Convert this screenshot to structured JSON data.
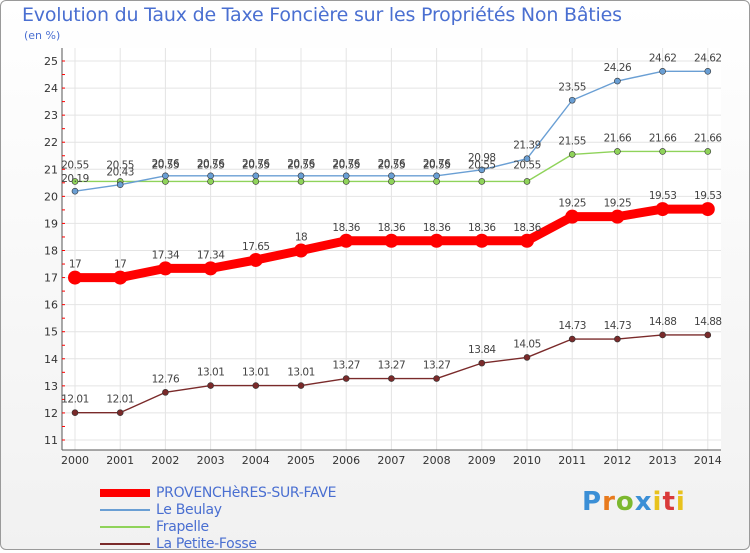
{
  "chart_data": {
    "type": "line",
    "title": "Evolution du Taux de Taxe Foncière sur les Propriétés Non Bâties",
    "ylabel": "(en %)",
    "xlabel": "",
    "ylim": [
      11,
      25
    ],
    "yticks": [
      11,
      12,
      13,
      14,
      15,
      16,
      17,
      18,
      19,
      20,
      21,
      22,
      23,
      24,
      25
    ],
    "x": [
      "2000",
      "2001",
      "2002",
      "2003",
      "2004",
      "2005",
      "2006",
      "2007",
      "2008",
      "2009",
      "2010",
      "2011",
      "2012",
      "2013",
      "2014"
    ],
    "series": [
      {
        "name": "PROVENCHèRES-SUR-FAVE",
        "color": "#ff0000",
        "values": [
          17,
          17,
          17.34,
          17.34,
          17.65,
          18,
          18.36,
          18.36,
          18.36,
          18.36,
          18.36,
          19.25,
          19.25,
          19.53,
          19.53
        ],
        "labels": [
          "17",
          "17",
          "17.34",
          "17.34",
          "17.65",
          "18",
          "18.36",
          "18.36",
          "18.36",
          "18.36",
          "18.36",
          "19.25",
          "19.25",
          "19.53",
          "19.53"
        ]
      },
      {
        "name": "Le Beulay",
        "color": "#6a9fd4",
        "values": [
          20.19,
          20.43,
          20.76,
          20.76,
          20.76,
          20.76,
          20.76,
          20.76,
          20.76,
          20.98,
          21.39,
          23.55,
          24.26,
          24.62,
          24.62
        ],
        "labels": [
          "20.19",
          "20.43",
          "20.76",
          "20.76",
          "20.76",
          "20.76",
          "20.76",
          "20.76",
          "20.76",
          "20.98",
          "21.39",
          "23.55",
          "24.26",
          "24.62",
          "24.62"
        ]
      },
      {
        "name": "Frapelle",
        "color": "#8fd35a",
        "values": [
          20.55,
          20.55,
          20.55,
          20.55,
          20.55,
          20.55,
          20.55,
          20.55,
          20.55,
          20.55,
          20.55,
          21.55,
          21.66,
          21.66,
          21.66
        ],
        "labels": [
          "20.55",
          "20.55",
          "20.55",
          "20.55",
          "20.55",
          "20.55",
          "20.55",
          "20.55",
          "20.55",
          "20.55",
          "20.55",
          "21.55",
          "21.66",
          "21.66",
          "21.66"
        ]
      },
      {
        "name": "La Petite-Fosse",
        "color": "#7a2a2a",
        "values": [
          12.01,
          12.01,
          12.76,
          13.01,
          13.01,
          13.01,
          13.27,
          13.27,
          13.27,
          13.84,
          14.05,
          14.73,
          14.73,
          14.88,
          14.88
        ],
        "labels": [
          "12.01",
          "12.01",
          "12.76",
          "13.01",
          "13.01",
          "13.01",
          "13.27",
          "13.27",
          "13.27",
          "13.84",
          "14.05",
          "14.73",
          "14.73",
          "14.88",
          "14.88"
        ]
      }
    ],
    "grid": true,
    "legend": "bottom-left"
  },
  "legend": {
    "items": [
      "PROVENCHèRES-SUR-FAVE",
      "Le Beulay",
      "Frapelle",
      "La Petite-Fosse"
    ]
  },
  "logo": {
    "letters": [
      "P",
      "r",
      "o",
      "x",
      "i",
      "t",
      "i"
    ]
  }
}
